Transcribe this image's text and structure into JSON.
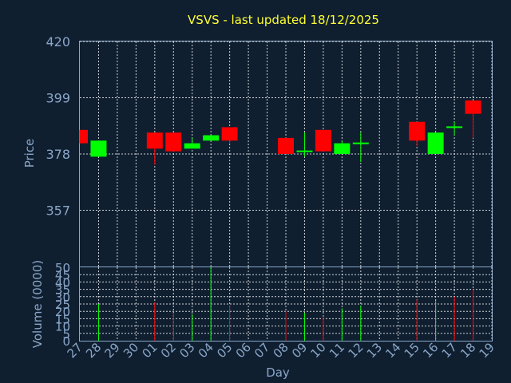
{
  "title": "VSVS - last updated 18/12/2025",
  "colors": {
    "background": "#0f1f30",
    "up": "#00ff00",
    "down": "#ff0000",
    "title": "#ffff33",
    "axis_text": "#8aa6c8"
  },
  "chart_data": [
    {
      "type": "candlestick",
      "ylabel": "Price",
      "ylim": [
        336,
        420
      ],
      "yticks": [
        357,
        378,
        399,
        420
      ],
      "grid": true,
      "categories": [
        "27",
        "28",
        "29",
        "30",
        "01",
        "02",
        "03",
        "04",
        "05",
        "06",
        "07",
        "08",
        "09",
        "10",
        "11",
        "12",
        "13",
        "14",
        "15",
        "16",
        "17",
        "18",
        "19"
      ],
      "candles": [
        {
          "day": "27",
          "open": 387,
          "close": 382,
          "high": 387,
          "low": 382
        },
        {
          "day": "28",
          "open": 377,
          "close": 383,
          "high": 383,
          "low": 377
        },
        {
          "day": "01",
          "open": 386,
          "close": 380,
          "high": 386,
          "low": 374
        },
        {
          "day": "02",
          "open": 386,
          "close": 379,
          "high": 386,
          "low": 379
        },
        {
          "day": "03",
          "open": 380,
          "close": 382,
          "high": 384,
          "low": 380
        },
        {
          "day": "04",
          "open": 383,
          "close": 385,
          "high": 385,
          "low": 383
        },
        {
          "day": "05",
          "open": 388,
          "close": 383,
          "high": 388,
          "low": 382
        },
        {
          "day": "08",
          "open": 384,
          "close": 378,
          "high": 384,
          "low": 378
        },
        {
          "day": "09",
          "open": 379,
          "close": 379,
          "high": 386,
          "low": 377
        },
        {
          "day": "10",
          "open": 387,
          "close": 379,
          "high": 387,
          "low": 379
        },
        {
          "day": "11",
          "open": 378,
          "close": 382,
          "high": 383,
          "low": 378
        },
        {
          "day": "12",
          "open": 382,
          "close": 382,
          "high": 386,
          "low": 375
        },
        {
          "day": "15",
          "open": 390,
          "close": 383,
          "high": 390,
          "low": 381
        },
        {
          "day": "16",
          "open": 378,
          "close": 386,
          "high": 386,
          "low": 378
        },
        {
          "day": "17",
          "open": 388,
          "close": 388,
          "high": 390,
          "low": 385
        },
        {
          "day": "18",
          "open": 398,
          "close": 393,
          "high": 398,
          "low": 384
        }
      ]
    },
    {
      "type": "bar",
      "ylabel": "Volume (0000)",
      "xlabel": "Day",
      "ylim": [
        0,
        50
      ],
      "yticks": [
        0,
        5,
        10,
        15,
        20,
        25,
        30,
        35,
        40,
        45,
        50
      ],
      "grid": true,
      "categories": [
        "27",
        "28",
        "29",
        "30",
        "01",
        "02",
        "03",
        "04",
        "05",
        "06",
        "07",
        "08",
        "09",
        "10",
        "11",
        "12",
        "13",
        "14",
        "15",
        "16",
        "17",
        "18",
        "19"
      ],
      "bars": [
        {
          "day": "28",
          "value": 25,
          "color": "up"
        },
        {
          "day": "01",
          "value": 26,
          "color": "down"
        },
        {
          "day": "02",
          "value": 19,
          "color": "down"
        },
        {
          "day": "03",
          "value": 18,
          "color": "up"
        },
        {
          "day": "04",
          "value": 50,
          "color": "up"
        },
        {
          "day": "05",
          "value": 24,
          "color": "down"
        },
        {
          "day": "08",
          "value": 20,
          "color": "down"
        },
        {
          "day": "09",
          "value": 19,
          "color": "up"
        },
        {
          "day": "10",
          "value": 16,
          "color": "down"
        },
        {
          "day": "11",
          "value": 22,
          "color": "up"
        },
        {
          "day": "12",
          "value": 24,
          "color": "up"
        },
        {
          "day": "15",
          "value": 28,
          "color": "down"
        },
        {
          "day": "16",
          "value": 27,
          "color": "up"
        },
        {
          "day": "17",
          "value": 30,
          "color": "down"
        },
        {
          "day": "18",
          "value": 35,
          "color": "down"
        }
      ]
    }
  ]
}
